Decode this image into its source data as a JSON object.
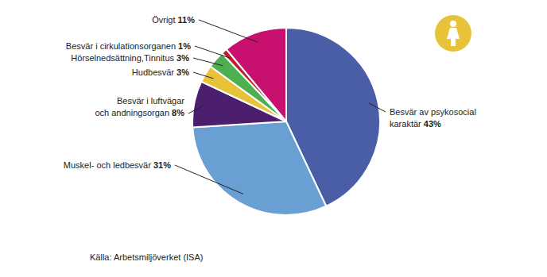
{
  "chart_data": {
    "type": "pie",
    "categories": [
      "Besvär av psykosocial karaktär",
      "Muskel- och ledbesvär",
      "Besvär i luftvägar och andningsorgan",
      "Hudbesvär",
      "Hörselnedsättning,Tinnitus",
      "Besvär i cirkulationsorganen",
      "Övrigt"
    ],
    "values": [
      43,
      31,
      8,
      3,
      3,
      1,
      11
    ],
    "value_labels": [
      "43%",
      "31%",
      "8%",
      "3%",
      "3%",
      "1%",
      "11%"
    ],
    "colors": [
      "#4a5ea8",
      "#6a9fd4",
      "#4b1f6e",
      "#e8c33a",
      "#4caf50",
      "#c0202a",
      "#c8106e"
    ],
    "data_labels": true,
    "source": "Källa: Arbetsmiljöverket (ISA)"
  }
}
